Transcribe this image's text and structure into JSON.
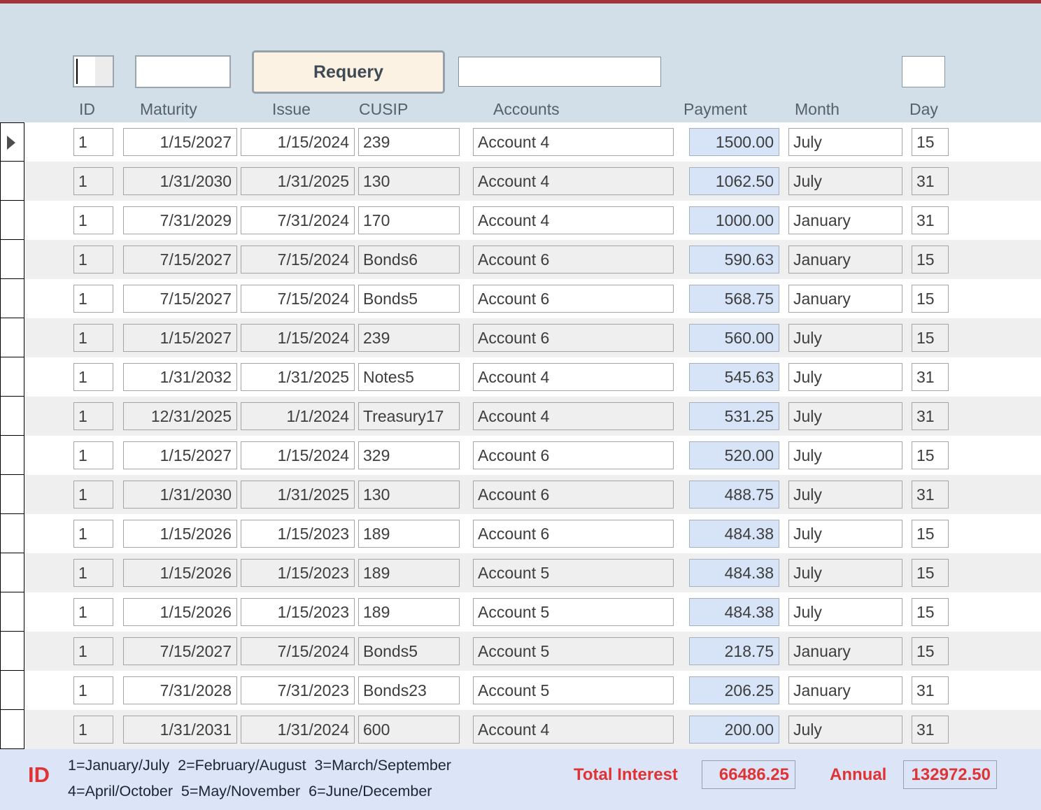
{
  "toolbar": {
    "requery_label": "Requery",
    "id_filter_value": "",
    "maturity_filter_value": "",
    "accounts_filter_value": "",
    "day_filter_value": ""
  },
  "columns": [
    "ID",
    "Maturity",
    "Issue",
    "CUSIP",
    "Accounts",
    "Payment",
    "Month",
    "Day"
  ],
  "rows": [
    {
      "id": "1",
      "maturity": "1/15/2027",
      "issue": "1/15/2024",
      "cusip": "239",
      "account": "Account 4",
      "payment": "1500.00",
      "month": "July",
      "day": "15"
    },
    {
      "id": "1",
      "maturity": "1/31/2030",
      "issue": "1/31/2025",
      "cusip": "130",
      "account": "Account 4",
      "payment": "1062.50",
      "month": "July",
      "day": "31"
    },
    {
      "id": "1",
      "maturity": "7/31/2029",
      "issue": "7/31/2024",
      "cusip": "170",
      "account": "Account 4",
      "payment": "1000.00",
      "month": "January",
      "day": "31"
    },
    {
      "id": "1",
      "maturity": "7/15/2027",
      "issue": "7/15/2024",
      "cusip": "Bonds6",
      "account": "Account 6",
      "payment": "590.63",
      "month": "January",
      "day": "15"
    },
    {
      "id": "1",
      "maturity": "7/15/2027",
      "issue": "7/15/2024",
      "cusip": "Bonds5",
      "account": "Account 6",
      "payment": "568.75",
      "month": "January",
      "day": "15"
    },
    {
      "id": "1",
      "maturity": "1/15/2027",
      "issue": "1/15/2024",
      "cusip": "239",
      "account": "Account 6",
      "payment": "560.00",
      "month": "July",
      "day": "15"
    },
    {
      "id": "1",
      "maturity": "1/31/2032",
      "issue": "1/31/2025",
      "cusip": "Notes5",
      "account": "Account 4",
      "payment": "545.63",
      "month": "July",
      "day": "31"
    },
    {
      "id": "1",
      "maturity": "12/31/2025",
      "issue": "1/1/2024",
      "cusip": "Treasury17",
      "account": "Account 4",
      "payment": "531.25",
      "month": "July",
      "day": "31"
    },
    {
      "id": "1",
      "maturity": "1/15/2027",
      "issue": "1/15/2024",
      "cusip": "329",
      "account": "Account 6",
      "payment": "520.00",
      "month": "July",
      "day": "15"
    },
    {
      "id": "1",
      "maturity": "1/31/2030",
      "issue": "1/31/2025",
      "cusip": "130",
      "account": "Account 6",
      "payment": "488.75",
      "month": "July",
      "day": "31"
    },
    {
      "id": "1",
      "maturity": "1/15/2026",
      "issue": "1/15/2023",
      "cusip": "189",
      "account": "Account 6",
      "payment": "484.38",
      "month": "July",
      "day": "15"
    },
    {
      "id": "1",
      "maturity": "1/15/2026",
      "issue": "1/15/2023",
      "cusip": "189",
      "account": "Account 5",
      "payment": "484.38",
      "month": "July",
      "day": "15"
    },
    {
      "id": "1",
      "maturity": "1/15/2026",
      "issue": "1/15/2023",
      "cusip": "189",
      "account": "Account 5",
      "payment": "484.38",
      "month": "July",
      "day": "15"
    },
    {
      "id": "1",
      "maturity": "7/15/2027",
      "issue": "7/15/2024",
      "cusip": "Bonds5",
      "account": "Account 5",
      "payment": "218.75",
      "month": "January",
      "day": "15"
    },
    {
      "id": "1",
      "maturity": "7/31/2028",
      "issue": "7/31/2023",
      "cusip": "Bonds23",
      "account": "Account 5",
      "payment": "206.25",
      "month": "January",
      "day": "31"
    },
    {
      "id": "1",
      "maturity": "1/31/2031",
      "issue": "1/31/2024",
      "cusip": "600",
      "account": "Account 4",
      "payment": "200.00",
      "month": "July",
      "day": "31"
    }
  ],
  "footer": {
    "id_label": "ID",
    "legend_line1": "1=January/July  2=February/August  3=March/September",
    "legend_line2": "4=April/October  5=May/November  6=June/December",
    "total_interest_label": "Total Interest",
    "total_interest_value": "66486.25",
    "annual_label": "Annual",
    "annual_value": "132972.50"
  },
  "colors": {
    "top_border": "#a3333a",
    "header_background": "#d2dfe8",
    "button_background": "#fbf2e4",
    "row_alt_background": "#f0efef",
    "payment_field_background": "#d7e3f7",
    "footer_background": "#dce5f8",
    "accent_red": "#e03434"
  }
}
